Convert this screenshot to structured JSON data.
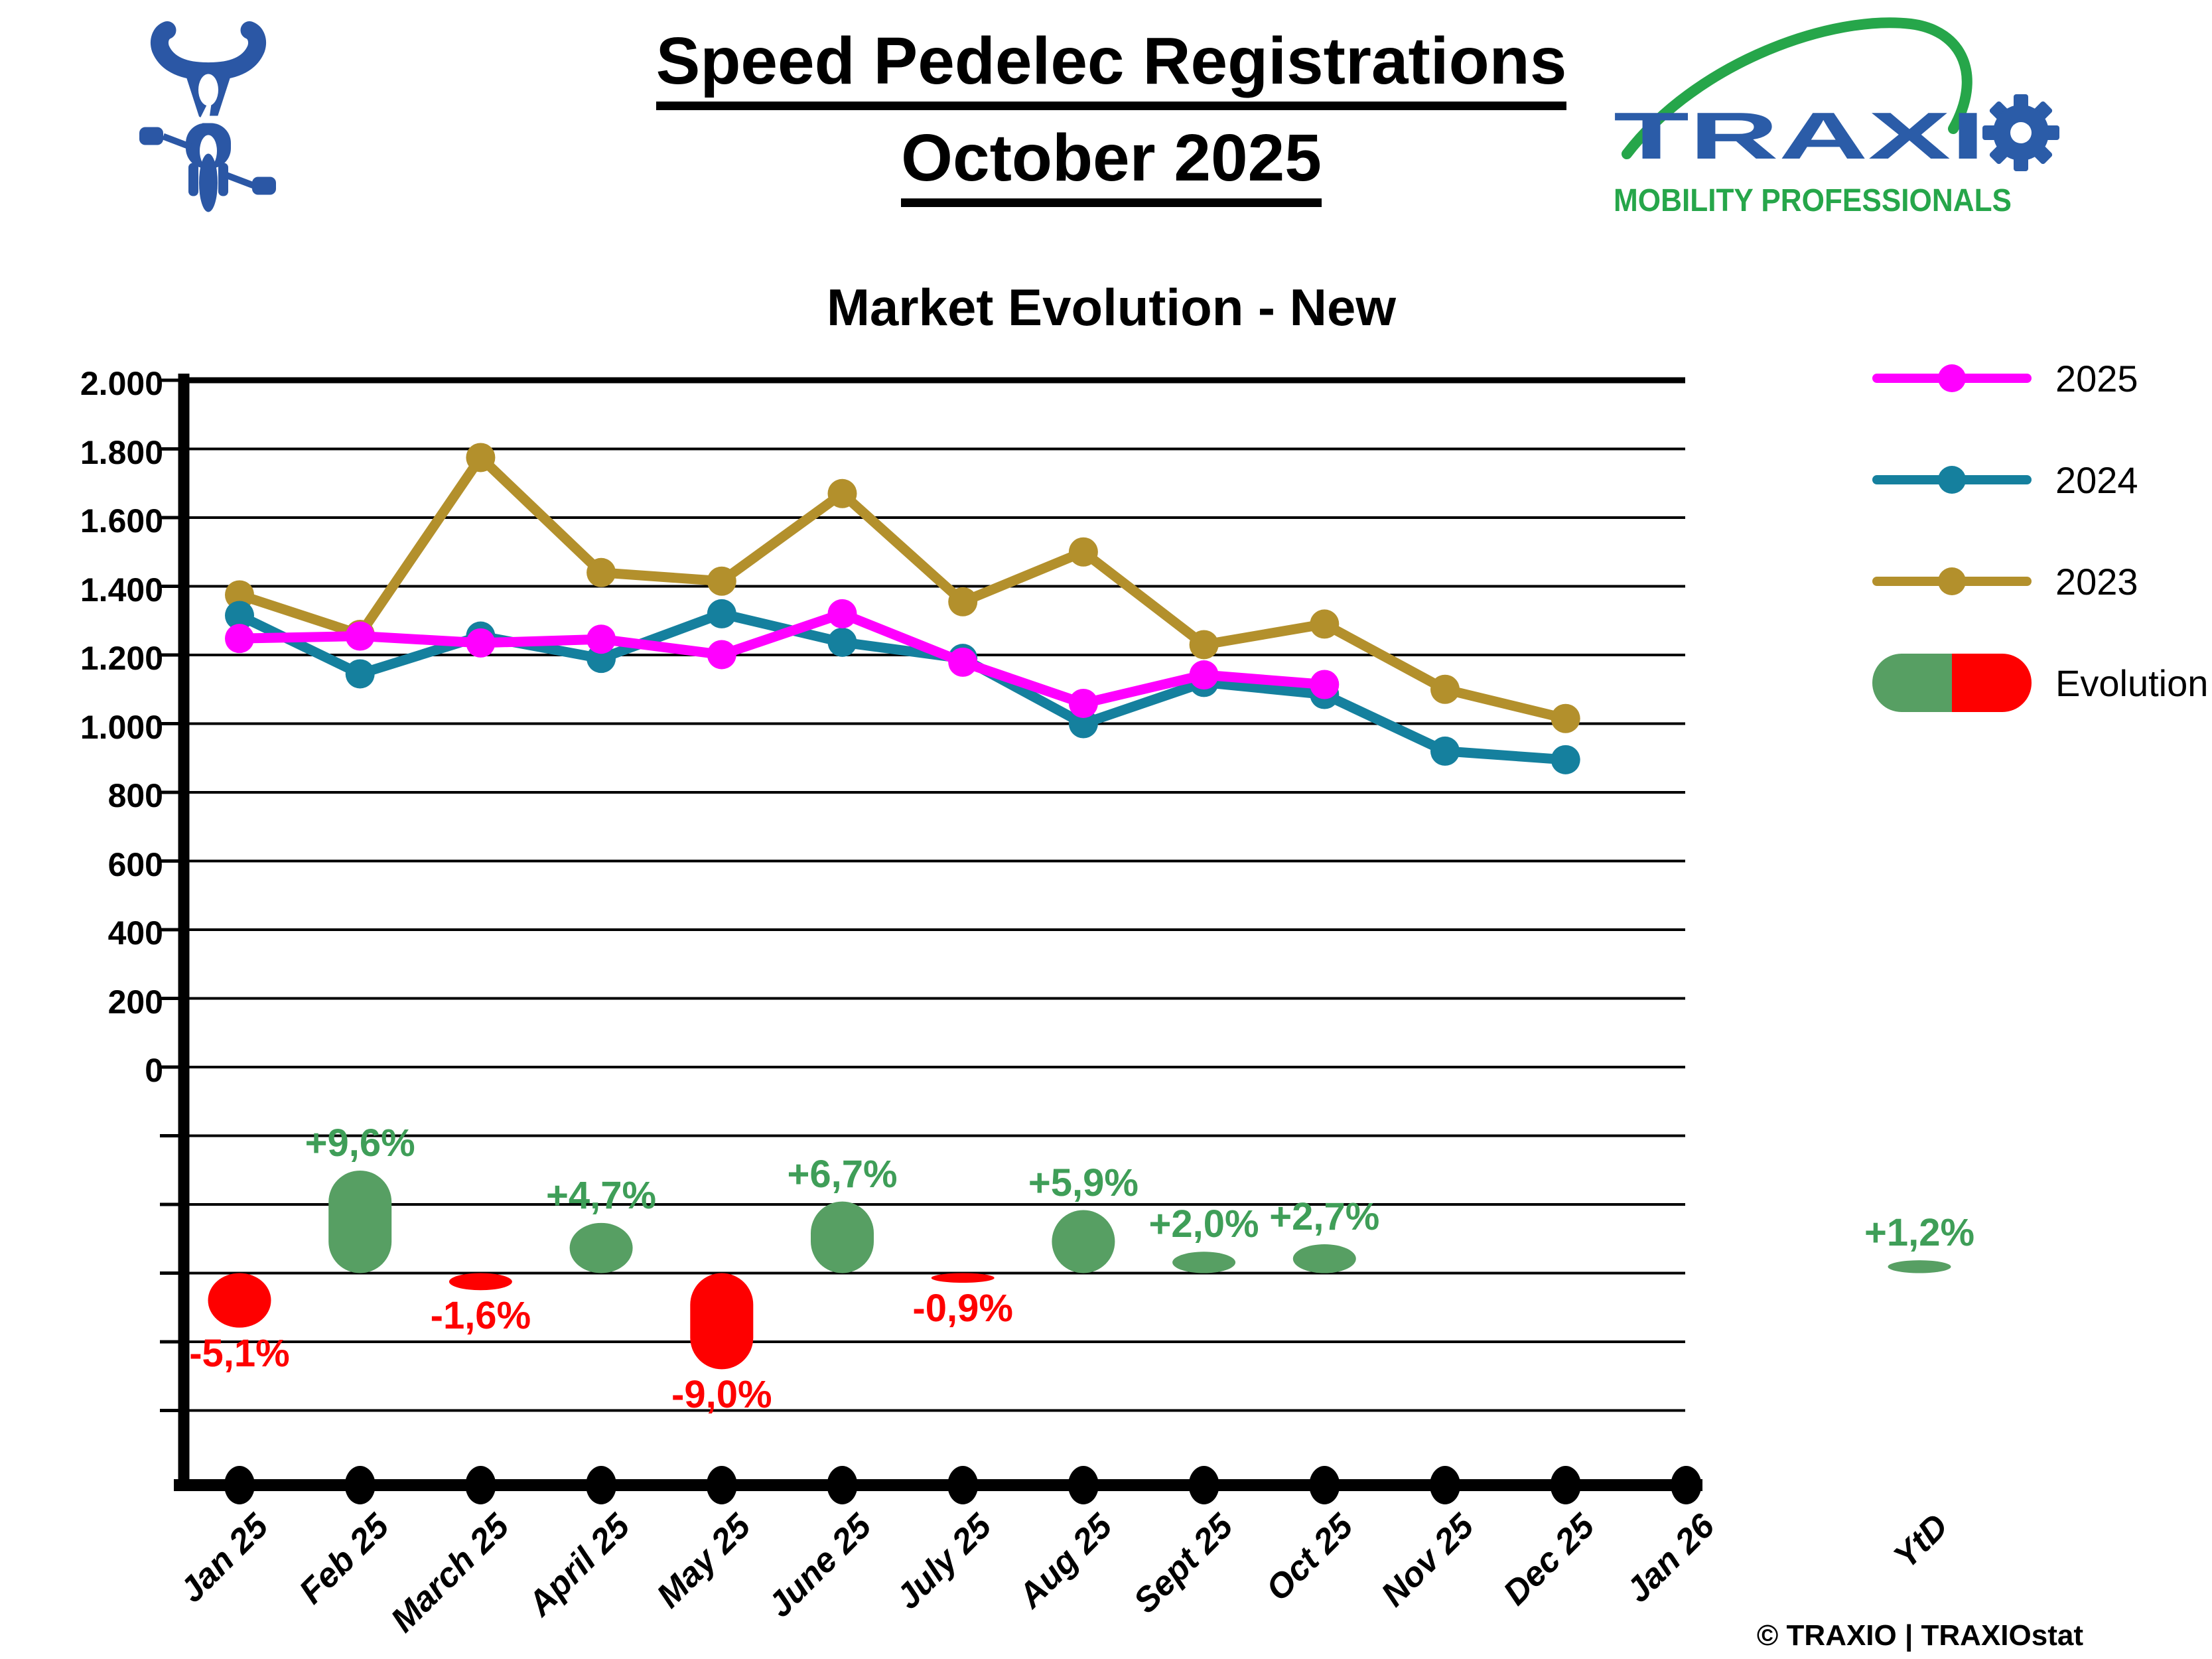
{
  "page": {
    "title_line1": "Speed Pedelec Registrations",
    "title_line2": "October 2025",
    "footer": "© TRAXIO | TRAXIOstat"
  },
  "logo": {
    "brand_prefix": "TRAXI",
    "brand_gear_letter": "O",
    "tagline": "MOBILITY PROFESSIONALS",
    "blue": "#2b5ca8",
    "green": "#26a64a"
  },
  "bike_icon_color": "#2b57a5",
  "legend": {
    "items": [
      {
        "label": "2025",
        "type": "line",
        "color": "#ff00ff"
      },
      {
        "label": "2024",
        "type": "line",
        "color": "#15809e"
      },
      {
        "label": "2023",
        "type": "line",
        "color": "#b3902c"
      },
      {
        "label": "Evolution",
        "type": "pill",
        "colors": [
          "#579f63",
          "#fe0000"
        ]
      }
    ]
  },
  "chart_data": {
    "type": "line",
    "title": "Market Evolution - New",
    "categories": [
      "Jan 25",
      "Feb 25",
      "March 25",
      "April 25",
      "May 25",
      "June 25",
      "July 25",
      "Aug 25",
      "Sept 25",
      "Oct 25",
      "Nov 25",
      "Dec 25",
      "Jan 26"
    ],
    "extra_category": "YtD",
    "y_tick_labels": [
      "2.000",
      "1.800",
      "1.600",
      "1.400",
      "1.200",
      "1.000",
      "800",
      "600",
      "400",
      "200",
      "0"
    ],
    "ylim": [
      0,
      2000
    ],
    "grid": true,
    "legend_position": "right",
    "series": [
      {
        "name": "2025",
        "color": "#ff00ff",
        "values": [
          1248,
          1255,
          1235,
          1246,
          1201,
          1320,
          1179,
          1059,
          1142,
          1114,
          null,
          null,
          null
        ]
      },
      {
        "name": "2024",
        "color": "#15809e",
        "values": [
          1315,
          1145,
          1255,
          1190,
          1320,
          1237,
          1190,
          1000,
          1120,
          1085,
          920,
          895,
          null
        ]
      },
      {
        "name": "2023",
        "color": "#b3902c",
        "values": [
          1375,
          1260,
          1775,
          1440,
          1415,
          1670,
          1355,
          1500,
          1230,
          1290,
          1100,
          1015,
          null
        ]
      }
    ],
    "evolution": {
      "name": "Evolution",
      "positive_color": "#579f63",
      "negative_color": "#fe0000",
      "positive_label_color": "#3f9e58",
      "negative_label_color": "#fe0000",
      "values_pct": [
        -5.1,
        9.6,
        -1.6,
        4.7,
        -9.0,
        6.7,
        -0.9,
        5.9,
        2.0,
        2.7,
        null,
        null,
        null
      ],
      "labels": [
        "-5,1%",
        "+9,6%",
        "-1,6%",
        "+4,7%",
        "-9,0%",
        "+6,7%",
        "-0,9%",
        "+5,9%",
        "+2,0%",
        "+2,7%"
      ],
      "ytd_pct": 1.2,
      "ytd_label": "+1,2%"
    }
  }
}
